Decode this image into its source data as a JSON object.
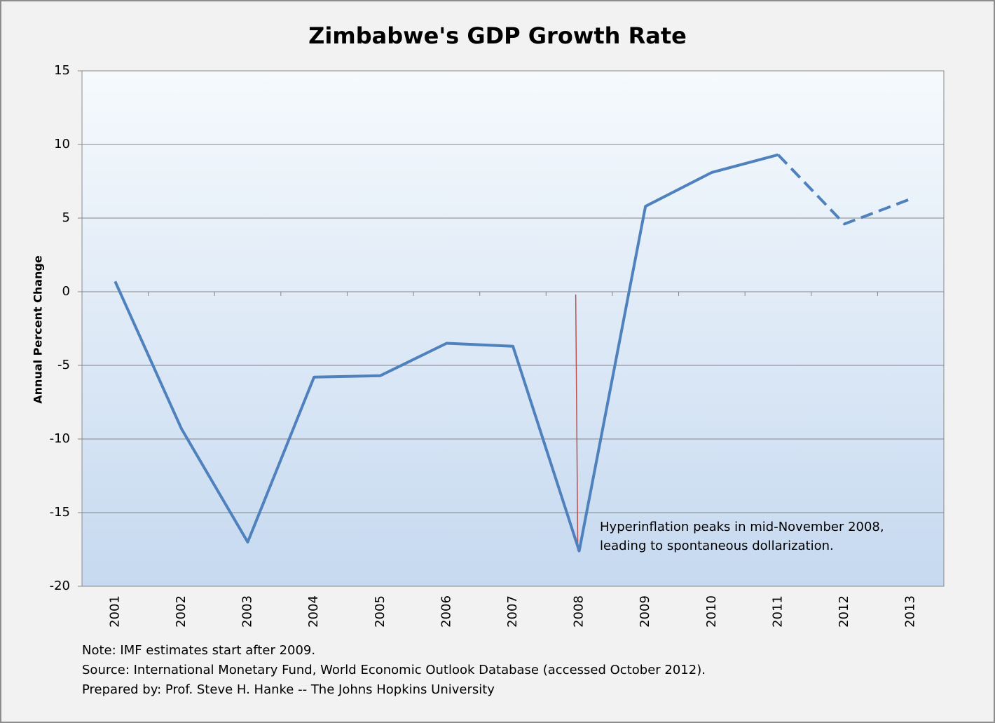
{
  "chart_data": {
    "type": "line",
    "title": "Zimbabwe's GDP Growth Rate",
    "y_label": "Annual Percent Change",
    "categories": [
      "2001",
      "2002",
      "2003",
      "2004",
      "2005",
      "2006",
      "2007",
      "2008",
      "2009",
      "2010",
      "2011",
      "2012",
      "2013"
    ],
    "series": [
      {
        "color": "#4f81bd",
        "dashed": false,
        "values": [
          0.7,
          -9.3,
          -17.0,
          -5.8,
          -5.7,
          -3.5,
          -3.7,
          -17.6,
          5.8,
          8.1,
          9.3,
          null,
          null
        ]
      },
      {
        "color": "#4f81bd",
        "dashed": true,
        "values": [
          null,
          null,
          null,
          null,
          null,
          null,
          null,
          null,
          null,
          null,
          9.3,
          4.6,
          6.3
        ]
      }
    ],
    "ylim": [
      -20,
      15
    ],
    "yticks": [
      -20,
      -15,
      -10,
      -5,
      0,
      5,
      10,
      15
    ],
    "grid": true,
    "annotation": {
      "lines": [
        "Hyperinflation peaks in mid-November 2008,",
        "leading to spontaneous dollarization."
      ],
      "color": "#c0504d"
    },
    "notes": [
      "Note: IMF estimates start after 2009.",
      "Source: International Monetary Fund, World Economic Outlook Database (accessed October 2012).",
      "Prepared by: Prof. Steve H. Hanke -- The Johns Hopkins University"
    ]
  }
}
